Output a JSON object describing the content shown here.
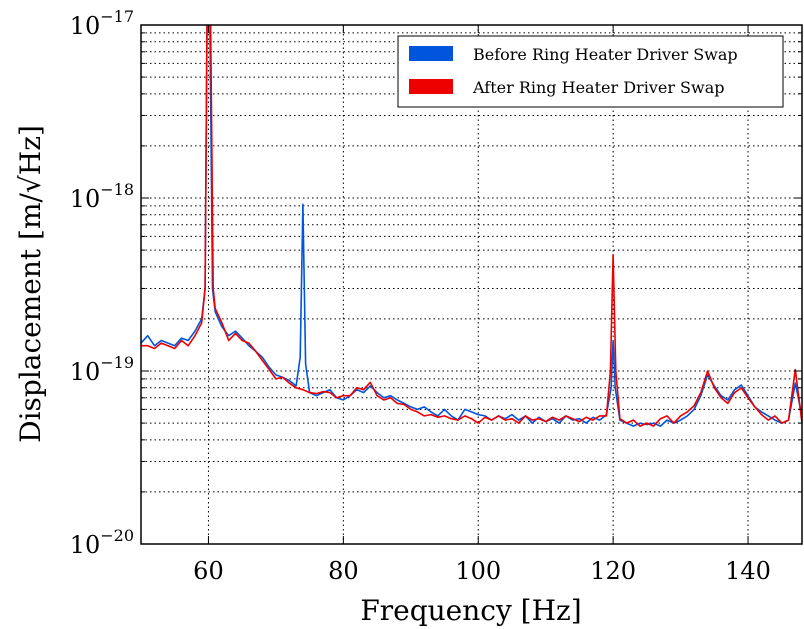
{
  "chart_data": {
    "type": "line",
    "title": "",
    "xlabel": "Frequency [Hz]",
    "ylabel": "Displacement [m/√Hz]",
    "xlim": [
      50,
      148
    ],
    "ylim": [
      1e-20,
      1e-17
    ],
    "y_scale": "log",
    "grid": true,
    "grid_style": "dotted",
    "legend_position": "top-right",
    "x_ticks": [
      60,
      80,
      100,
      120,
      140
    ],
    "x_tick_labels": [
      "60",
      "80",
      "100",
      "120",
      "140"
    ],
    "y_ticks": [
      1e-20,
      1e-19,
      1e-18,
      1e-17
    ],
    "y_tick_labels": [
      {
        "base": "10",
        "exp": "−20"
      },
      {
        "base": "10",
        "exp": "−19"
      },
      {
        "base": "10",
        "exp": "−18"
      },
      {
        "base": "10",
        "exp": "−17"
      }
    ],
    "series": [
      {
        "name": "Before Ring Heater Driver Swap",
        "color": "#0055dd",
        "points": [
          [
            50,
            1.45e-19
          ],
          [
            51,
            1.6e-19
          ],
          [
            52,
            1.4e-19
          ],
          [
            53,
            1.5e-19
          ],
          [
            54,
            1.45e-19
          ],
          [
            55,
            1.4e-19
          ],
          [
            56,
            1.55e-19
          ],
          [
            57,
            1.5e-19
          ],
          [
            58,
            1.7e-19
          ],
          [
            59,
            2e-19
          ],
          [
            59.5,
            3e-19
          ],
          [
            59.8,
            1.2e-17
          ],
          [
            60.2,
            1.2e-17
          ],
          [
            60.6,
            3e-19
          ],
          [
            61,
            2.2e-19
          ],
          [
            62,
            1.8e-19
          ],
          [
            63,
            1.6e-19
          ],
          [
            64,
            1.7e-19
          ],
          [
            65,
            1.55e-19
          ],
          [
            66,
            1.4e-19
          ],
          [
            67,
            1.3e-19
          ],
          [
            68,
            1.2e-19
          ],
          [
            69,
            1.05e-19
          ],
          [
            70,
            9.5e-20
          ],
          [
            71,
            9.2e-20
          ],
          [
            72,
            8.8e-20
          ],
          [
            73,
            8.2e-20
          ],
          [
            73.6,
            1.2e-19
          ],
          [
            74,
            9.2e-19
          ],
          [
            74.4,
            1.1e-19
          ],
          [
            75,
            7.5e-20
          ],
          [
            76,
            7.2e-20
          ],
          [
            77,
            7.5e-20
          ],
          [
            78,
            7.8e-20
          ],
          [
            79,
            7e-20
          ],
          [
            80,
            6.8e-20
          ],
          [
            81,
            7.2e-20
          ],
          [
            82,
            7.8e-20
          ],
          [
            83,
            7.5e-20
          ],
          [
            84,
            8.2e-20
          ],
          [
            85,
            7.5e-20
          ],
          [
            86,
            7e-20
          ],
          [
            87,
            7.2e-20
          ],
          [
            88,
            6.8e-20
          ],
          [
            89,
            6.5e-20
          ],
          [
            90,
            6.2e-20
          ],
          [
            91,
            6e-20
          ],
          [
            92,
            6.2e-20
          ],
          [
            93,
            5.8e-20
          ],
          [
            94,
            5.5e-20
          ],
          [
            95,
            6e-20
          ],
          [
            96,
            5.5e-20
          ],
          [
            97,
            5.2e-20
          ],
          [
            98,
            6e-20
          ],
          [
            99,
            5.8e-20
          ],
          [
            100,
            5.6e-20
          ],
          [
            101,
            5.5e-20
          ],
          [
            102,
            5.2e-20
          ],
          [
            103,
            5.5e-20
          ],
          [
            104,
            5.3e-20
          ],
          [
            105,
            5.6e-20
          ],
          [
            106,
            5.2e-20
          ],
          [
            107,
            5.5e-20
          ],
          [
            108,
            5e-20
          ],
          [
            109,
            5.4e-20
          ],
          [
            110,
            5.1e-20
          ],
          [
            111,
            5.3e-20
          ],
          [
            112,
            5e-20
          ],
          [
            113,
            5.5e-20
          ],
          [
            114,
            5.2e-20
          ],
          [
            115,
            5.3e-20
          ],
          [
            116,
            5e-20
          ],
          [
            117,
            5.4e-20
          ],
          [
            118,
            5.2e-20
          ],
          [
            119,
            5.6e-20
          ],
          [
            119.7,
            8e-20
          ],
          [
            120,
            1.5e-19
          ],
          [
            120.3,
            8e-20
          ],
          [
            121,
            5.2e-20
          ],
          [
            122,
            5e-20
          ],
          [
            123,
            4.8e-20
          ],
          [
            124,
            5e-20
          ],
          [
            125,
            4.9e-20
          ],
          [
            126,
            5e-20
          ],
          [
            127,
            4.8e-20
          ],
          [
            128,
            5.2e-20
          ],
          [
            129,
            5e-20
          ],
          [
            130,
            5.2e-20
          ],
          [
            131,
            5.5e-20
          ],
          [
            132,
            6e-20
          ],
          [
            133,
            7.2e-20
          ],
          [
            134,
            9.5e-20
          ],
          [
            135,
            8.2e-20
          ],
          [
            136,
            7.2e-20
          ],
          [
            137,
            6.8e-20
          ],
          [
            138,
            7.8e-20
          ],
          [
            139,
            8.3e-20
          ],
          [
            140,
            7.2e-20
          ],
          [
            141,
            6.2e-20
          ],
          [
            142,
            5.8e-20
          ],
          [
            143,
            5.5e-20
          ],
          [
            144,
            5.2e-20
          ],
          [
            145,
            5e-20
          ],
          [
            146,
            5.2e-20
          ],
          [
            147,
            8.5e-20
          ],
          [
            148,
            5.5e-20
          ]
        ]
      },
      {
        "name": "After Ring Heater Driver Swap",
        "color": "#ee0000",
        "points": [
          [
            50,
            1.4e-19
          ],
          [
            51,
            1.4e-19
          ],
          [
            52,
            1.35e-19
          ],
          [
            53,
            1.45e-19
          ],
          [
            54,
            1.4e-19
          ],
          [
            55,
            1.35e-19
          ],
          [
            56,
            1.5e-19
          ],
          [
            57,
            1.4e-19
          ],
          [
            58,
            1.6e-19
          ],
          [
            59,
            1.9e-19
          ],
          [
            59.5,
            3e-19
          ],
          [
            59.8,
            1.2e-17
          ],
          [
            60.3,
            1.2e-17
          ],
          [
            60.7,
            3e-19
          ],
          [
            61,
            2.3e-19
          ],
          [
            62,
            1.9e-19
          ],
          [
            63,
            1.5e-19
          ],
          [
            64,
            1.65e-19
          ],
          [
            65,
            1.5e-19
          ],
          [
            66,
            1.45e-19
          ],
          [
            67,
            1.3e-19
          ],
          [
            68,
            1.15e-19
          ],
          [
            69,
            1.02e-19
          ],
          [
            70,
            9e-20
          ],
          [
            71,
            9.2e-20
          ],
          [
            72,
            8.5e-20
          ],
          [
            73,
            8e-20
          ],
          [
            74,
            7.8e-20
          ],
          [
            75,
            7.5e-20
          ],
          [
            76,
            7.4e-20
          ],
          [
            77,
            7.6e-20
          ],
          [
            78,
            7.5e-20
          ],
          [
            79,
            7e-20
          ],
          [
            80,
            7.2e-20
          ],
          [
            81,
            7.2e-20
          ],
          [
            82,
            8e-20
          ],
          [
            83,
            7.8e-20
          ],
          [
            84,
            8.6e-20
          ],
          [
            85,
            7.2e-20
          ],
          [
            86,
            6.8e-20
          ],
          [
            87,
            7e-20
          ],
          [
            88,
            6.5e-20
          ],
          [
            89,
            6.4e-20
          ],
          [
            90,
            6e-20
          ],
          [
            91,
            5.8e-20
          ],
          [
            92,
            5.5e-20
          ],
          [
            93,
            5.6e-20
          ],
          [
            94,
            5.4e-20
          ],
          [
            95,
            5.5e-20
          ],
          [
            96,
            5.3e-20
          ],
          [
            97,
            5.2e-20
          ],
          [
            98,
            5.5e-20
          ],
          [
            99,
            5.3e-20
          ],
          [
            100,
            5e-20
          ],
          [
            101,
            5.4e-20
          ],
          [
            102,
            5.2e-20
          ],
          [
            103,
            5.5e-20
          ],
          [
            104,
            5.2e-20
          ],
          [
            105,
            5.3e-20
          ],
          [
            106,
            5e-20
          ],
          [
            107,
            5.5e-20
          ],
          [
            108,
            5.2e-20
          ],
          [
            109,
            5.3e-20
          ],
          [
            110,
            5.1e-20
          ],
          [
            111,
            5.4e-20
          ],
          [
            112,
            5.2e-20
          ],
          [
            113,
            5.5e-20
          ],
          [
            114,
            5.3e-20
          ],
          [
            115,
            5.1e-20
          ],
          [
            116,
            5.4e-20
          ],
          [
            117,
            5.2e-20
          ],
          [
            118,
            5.5e-20
          ],
          [
            119,
            5.5e-20
          ],
          [
            119.6,
            1e-19
          ],
          [
            120,
            4.7e-19
          ],
          [
            120.4,
            1e-19
          ],
          [
            121,
            5.3e-20
          ],
          [
            122,
            5e-20
          ],
          [
            123,
            5.2e-20
          ],
          [
            124,
            4.8e-20
          ],
          [
            125,
            5e-20
          ],
          [
            126,
            4.8e-20
          ],
          [
            127,
            5.3e-20
          ],
          [
            128,
            5.5e-20
          ],
          [
            129,
            5e-20
          ],
          [
            130,
            5.5e-20
          ],
          [
            131,
            5.8e-20
          ],
          [
            132,
            6.3e-20
          ],
          [
            133,
            7.5e-20
          ],
          [
            134,
            1e-19
          ],
          [
            135,
            8e-20
          ],
          [
            136,
            7e-20
          ],
          [
            137,
            6.5e-20
          ],
          [
            138,
            7.5e-20
          ],
          [
            139,
            8e-20
          ],
          [
            140,
            7e-20
          ],
          [
            141,
            6.2e-20
          ],
          [
            142,
            5.6e-20
          ],
          [
            143,
            5.2e-20
          ],
          [
            144,
            5.5e-20
          ],
          [
            145,
            5e-20
          ],
          [
            146,
            5.2e-20
          ],
          [
            147,
            1.02e-19
          ],
          [
            148,
            5e-20
          ]
        ]
      }
    ]
  }
}
